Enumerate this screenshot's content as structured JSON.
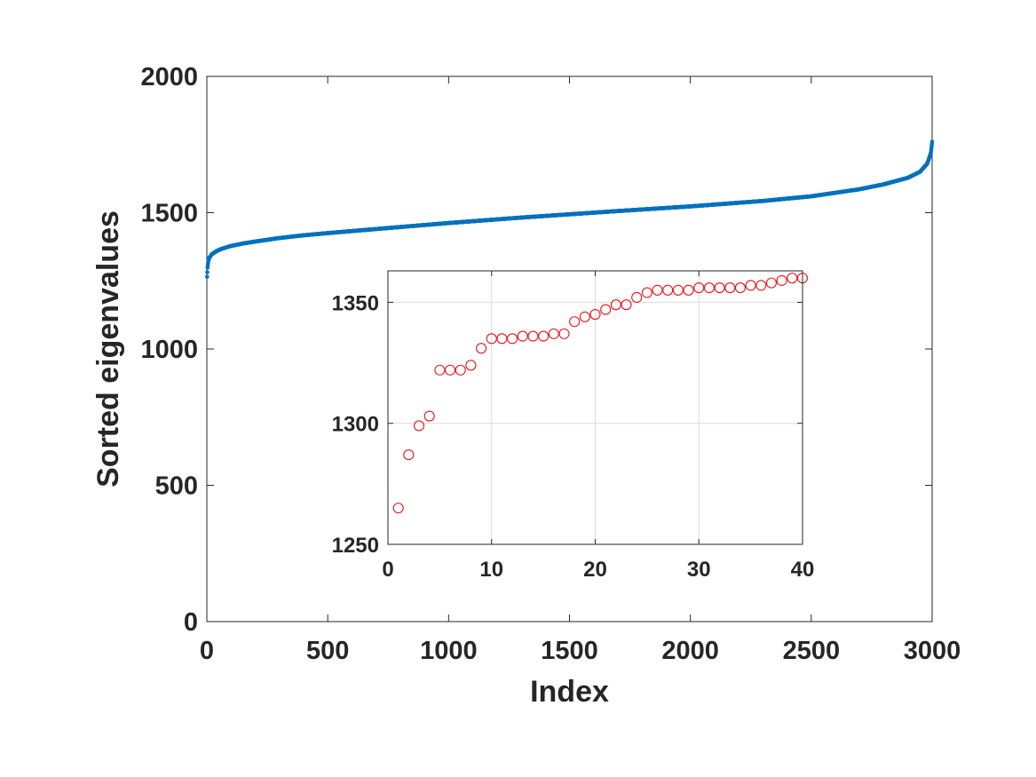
{
  "chart_data": [
    {
      "type": "scatter",
      "role": "main",
      "xlabel": "Index",
      "ylabel": "Sorted eigenvalues",
      "xlim": [
        0,
        3000
      ],
      "ylim": [
        0,
        2000
      ],
      "xticks": [
        0,
        500,
        1000,
        1500,
        2000,
        2500,
        3000
      ],
      "yticks": [
        0,
        500,
        1000,
        1500,
        2000
      ],
      "grid": false,
      "color": "#0072BD",
      "marker": "filled-dot",
      "curve_points": [
        [
          1,
          1265
        ],
        [
          3,
          1298
        ],
        [
          6,
          1322
        ],
        [
          10,
          1334
        ],
        [
          20,
          1347
        ],
        [
          40,
          1359
        ],
        [
          60,
          1367
        ],
        [
          100,
          1378
        ],
        [
          150,
          1387
        ],
        [
          200,
          1394
        ],
        [
          300,
          1407
        ],
        [
          400,
          1417
        ],
        [
          500,
          1425
        ],
        [
          700,
          1440
        ],
        [
          1000,
          1462
        ],
        [
          1300,
          1482
        ],
        [
          1500,
          1494
        ],
        [
          1700,
          1506
        ],
        [
          2000,
          1523
        ],
        [
          2300,
          1543
        ],
        [
          2500,
          1560
        ],
        [
          2700,
          1586
        ],
        [
          2800,
          1604
        ],
        [
          2900,
          1628
        ],
        [
          2950,
          1650
        ],
        [
          2980,
          1680
        ],
        [
          2995,
          1720
        ],
        [
          3000,
          1760
        ]
      ]
    },
    {
      "type": "scatter",
      "role": "inset",
      "xlim": [
        0,
        40
      ],
      "ylim": [
        1250,
        1363
      ],
      "xticks": [
        0,
        10,
        20,
        30,
        40
      ],
      "yticks": [
        1250,
        1300,
        1350
      ],
      "grid": true,
      "color": "#e8141a",
      "marker": "open-circle",
      "x": [
        1,
        2,
        3,
        4,
        5,
        6,
        7,
        8,
        9,
        10,
        11,
        12,
        13,
        14,
        15,
        16,
        17,
        18,
        19,
        20,
        21,
        22,
        23,
        24,
        25,
        26,
        27,
        28,
        29,
        30,
        31,
        32,
        33,
        34,
        35,
        36,
        37,
        38,
        39,
        40
      ],
      "y": [
        1265,
        1287,
        1299,
        1303,
        1322,
        1322,
        1322,
        1324,
        1331,
        1335,
        1335,
        1335,
        1336,
        1336,
        1336,
        1337,
        1337,
        1342,
        1344,
        1345,
        1347,
        1349,
        1349,
        1352,
        1354,
        1355,
        1355,
        1355,
        1355,
        1356,
        1356,
        1356,
        1356,
        1356,
        1357,
        1357,
        1358,
        1359,
        1360,
        1360
      ]
    }
  ]
}
